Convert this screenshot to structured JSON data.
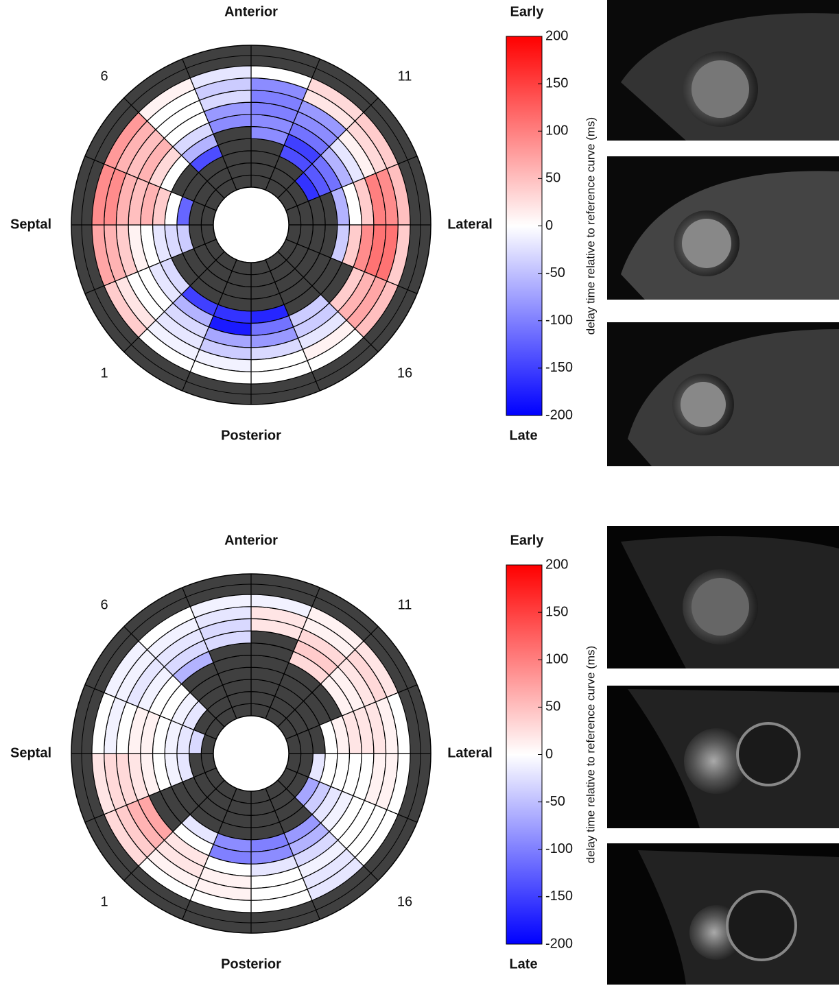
{
  "chart_data": [
    {
      "type": "polar_heatmap",
      "top_label": "Anterior",
      "bottom_label": "Posterior",
      "left_label": "Septal",
      "right_label": "Lateral",
      "sector_labels": [
        "6",
        "11",
        "1",
        "16"
      ],
      "colormap": [
        "#0000ff",
        "#ffffff",
        "#ff0000"
      ],
      "null_color": "#404040",
      "values": [
        [
          null,
          null,
          null,
          null,
          -90,
          -90,
          -100,
          -100,
          -90,
          0
        ],
        [
          null,
          null,
          null,
          -140,
          -150,
          -110,
          -90,
          -80,
          20,
          30
        ],
        [
          null,
          null,
          -160,
          -130,
          -110,
          -60,
          -20,
          10,
          30,
          40
        ],
        [
          null,
          null,
          null,
          null,
          -60,
          0,
          40,
          100,
          90,
          50
        ],
        [
          null,
          null,
          null,
          null,
          -40,
          40,
          90,
          110,
          110,
          40
        ],
        [
          null,
          null,
          null,
          null,
          null,
          null,
          40,
          60,
          70,
          50
        ],
        [
          null,
          null,
          null,
          null,
          null,
          -40,
          -40,
          -20,
          10,
          0
        ],
        [
          null,
          null,
          null,
          null,
          -170,
          -110,
          -80,
          -30,
          0,
          0
        ],
        [
          null,
          null,
          null,
          null,
          -160,
          -180,
          -70,
          -40,
          -10,
          0
        ],
        [
          null,
          null,
          null,
          null,
          -150,
          -60,
          -30,
          -20,
          -10,
          0
        ],
        [
          null,
          null,
          null,
          null,
          -30,
          -20,
          0,
          0,
          20,
          40
        ],
        [
          null,
          null,
          -40,
          -30,
          -20,
          0,
          10,
          40,
          60,
          70
        ],
        [
          null,
          null,
          -120,
          0,
          40,
          60,
          50,
          60,
          90,
          90
        ],
        [
          null,
          null,
          null,
          null,
          0,
          30,
          60,
          50,
          60,
          80
        ],
        [
          null,
          null,
          null,
          -140,
          -60,
          -30,
          0,
          0,
          0,
          10
        ],
        [
          null,
          null,
          null,
          null,
          null,
          -90,
          -80,
          -30,
          -40,
          -20
        ]
      ],
      "colorbar": {
        "label": "delay time relative to reference curve (ms)",
        "top_label": "Early",
        "bottom_label": "Late",
        "lim": [
          -200,
          200
        ],
        "ticks": [
          200,
          150,
          100,
          50,
          0,
          -50,
          -100,
          -150,
          -200
        ]
      }
    },
    {
      "type": "polar_heatmap",
      "top_label": "Anterior",
      "bottom_label": "Posterior",
      "left_label": "Septal",
      "right_label": "Lateral",
      "sector_labels": [
        "6",
        "11",
        "1",
        "16"
      ],
      "colormap": [
        "#0000ff",
        "#ffffff",
        "#ff0000"
      ],
      "null_color": "#404040",
      "values": [
        [
          null,
          null,
          null,
          null,
          null,
          null,
          null,
          20,
          20,
          -10
        ],
        [
          null,
          null,
          null,
          null,
          null,
          30,
          40,
          30,
          10,
          10
        ],
        [
          null,
          null,
          null,
          null,
          null,
          10,
          10,
          20,
          30,
          20
        ],
        [
          null,
          null,
          null,
          0,
          10,
          20,
          20,
          20,
          10,
          0
        ],
        [
          null,
          null,
          -20,
          0,
          0,
          0,
          0,
          10,
          10,
          0
        ],
        [
          null,
          null,
          -70,
          -40,
          -20,
          -10,
          0,
          0,
          0,
          0
        ],
        [
          null,
          null,
          null,
          null,
          -80,
          -60,
          -30,
          -10,
          -20,
          -20
        ],
        [
          null,
          null,
          null,
          null,
          -100,
          -90,
          -20,
          0,
          0,
          0
        ],
        [
          null,
          null,
          null,
          null,
          -90,
          -100,
          0,
          10,
          10,
          0
        ],
        [
          null,
          null,
          null,
          null,
          -20,
          0,
          20,
          20,
          10,
          0
        ],
        [
          null,
          null,
          null,
          null,
          null,
          null,
          70,
          60,
          40,
          30
        ],
        [
          null,
          null,
          -20,
          -10,
          0,
          10,
          20,
          30,
          30,
          20
        ],
        [
          null,
          -30,
          -20,
          -10,
          0,
          10,
          10,
          0,
          -10,
          0
        ],
        [
          null,
          null,
          -20,
          -10,
          0,
          0,
          -10,
          -20,
          -10,
          -10
        ],
        [
          null,
          null,
          null,
          null,
          null,
          -60,
          -30,
          -20,
          -10,
          0
        ],
        [
          null,
          null,
          null,
          null,
          null,
          null,
          -30,
          -30,
          -20,
          -10
        ]
      ],
      "colorbar": {
        "label": "delay time relative to reference curve (ms)",
        "top_label": "Early",
        "bottom_label": "Late",
        "lim": [
          -200,
          200
        ],
        "ticks": [
          200,
          150,
          100,
          50,
          0,
          -50,
          -100,
          -150,
          -200
        ]
      }
    }
  ]
}
